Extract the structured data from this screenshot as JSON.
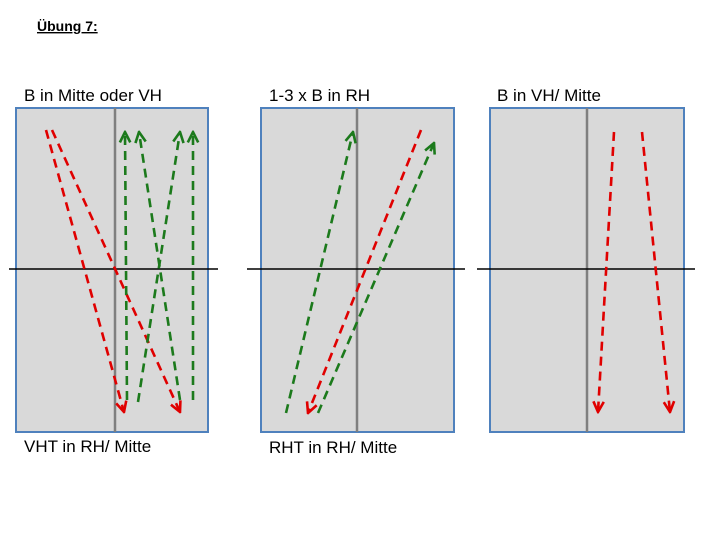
{
  "title": "Übung 7:",
  "panels": [
    {
      "top_label": "B in Mitte oder VH",
      "bottom_label": "VHT in RH/ Mitte"
    },
    {
      "top_label": "1-3 x B in RH",
      "bottom_label": "RHT in RH/ Mitte"
    },
    {
      "top_label": "B in VH/ Mitte"
    }
  ]
}
